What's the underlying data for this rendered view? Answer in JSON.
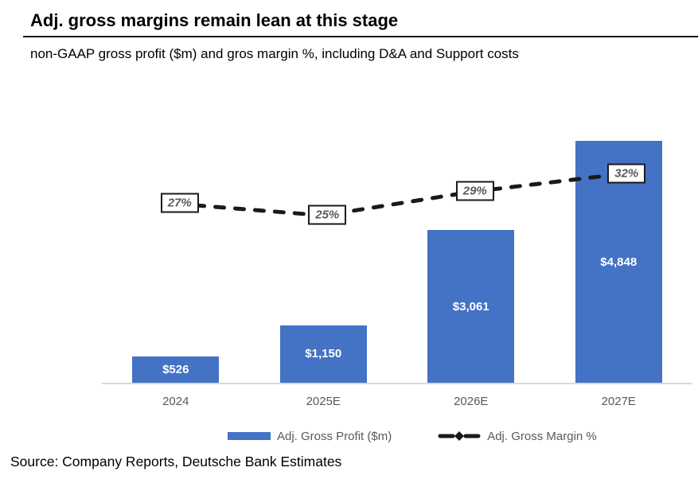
{
  "header": {
    "title": "Adj. gross margins remain lean at this stage",
    "subtitle": "non-GAAP gross profit ($m) and gros margin %, including D&A and Support costs"
  },
  "chart_data": {
    "type": "bar",
    "categories": [
      "2024",
      "2025E",
      "2026E",
      "2027E"
    ],
    "series": [
      {
        "name": "Adj. Gross Profit ($m)",
        "kind": "bar",
        "values": [
          526,
          1150,
          3061,
          4848
        ],
        "labels": [
          "$526",
          "$1,150",
          "$3,061",
          "$4,848"
        ],
        "color": "#4472C4"
      },
      {
        "name": "Adj. Gross Margin %",
        "kind": "line",
        "values": [
          27,
          25,
          29,
          32
        ],
        "labels": [
          "27%",
          "25%",
          "29%",
          "32%"
        ],
        "color": "#1a1a1a",
        "line_style": "dashed",
        "marker": "diamond"
      }
    ],
    "ylabel": "",
    "xlabel": "",
    "ylim": [
      0,
      5600
    ],
    "grid": false,
    "legend_position": "bottom"
  },
  "legend": {
    "bar_label": "Adj. Gross Profit ($m)",
    "line_label": "Adj. Gross Margin %"
  },
  "source": "Source: Company Reports, Deutsche Bank Estimates",
  "colors": {
    "bar": "#4472C4",
    "line": "#1a1a1a",
    "axis_line": "#D9D9D9",
    "axis_text": "#595959",
    "pct_text": "#595959"
  }
}
